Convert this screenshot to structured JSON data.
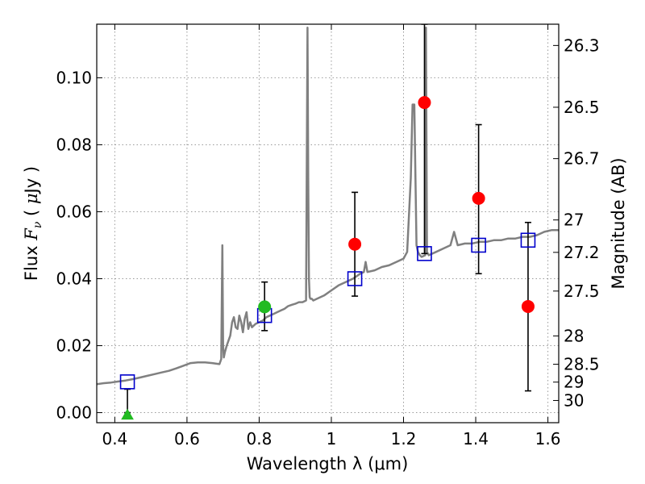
{
  "chart_data": {
    "type": "scatter",
    "title": "",
    "xlabel": "Wavelength  λ (μm)",
    "ylabel": "Flux  F_ν  ( μJy )",
    "ylabel_right": "Magnitude (AB)",
    "xlim": [
      0.35,
      1.63
    ],
    "ylim": [
      -0.003,
      0.116
    ],
    "grid": true,
    "x_ticks": [
      0.4,
      0.6,
      0.8,
      1.0,
      1.2,
      1.4,
      1.6
    ],
    "x_tick_labels": [
      "0.4",
      "0.6",
      "0.8",
      "1",
      "1.2",
      "1.4",
      "1.6"
    ],
    "y_ticks": [
      0.0,
      0.02,
      0.04,
      0.06,
      0.08,
      0.1
    ],
    "y_tick_labels": [
      "0.00",
      "0.02",
      "0.04",
      "0.06",
      "0.08",
      "0.10"
    ],
    "mag_ticks": [
      26.3,
      26.5,
      26.7,
      27,
      27.2,
      27.5,
      28,
      28.5,
      29,
      30
    ],
    "mag_tick_labels": [
      "26.3",
      "26.5",
      "26.7",
      "27",
      "27.2",
      "27.5",
      "28",
      "28.5",
      "29",
      "30"
    ],
    "colors": {
      "spectrum": "#808080",
      "model": "#0000cc",
      "measured": "#ff0000",
      "highlight": "#22bb22",
      "errorbar": "#000000",
      "grid": "#9a9a9a"
    },
    "series": [
      {
        "marker": "line",
        "x": [
          0.35,
          0.37,
          0.39,
          0.41,
          0.43,
          0.45,
          0.47,
          0.49,
          0.51,
          0.53,
          0.55,
          0.57,
          0.59,
          0.61,
          0.63,
          0.65,
          0.67,
          0.69,
          0.695,
          0.698,
          0.7,
          0.702,
          0.705,
          0.71,
          0.72,
          0.725,
          0.73,
          0.735,
          0.74,
          0.745,
          0.75,
          0.755,
          0.76,
          0.765,
          0.77,
          0.775,
          0.78,
          0.79,
          0.8,
          0.81,
          0.82,
          0.83,
          0.84,
          0.85,
          0.86,
          0.87,
          0.88,
          0.89,
          0.9,
          0.91,
          0.92,
          0.93,
          0.934,
          0.936,
          0.938,
          0.94,
          0.942,
          0.946,
          0.95,
          0.96,
          0.98,
          1.0,
          1.02,
          1.04,
          1.06,
          1.08,
          1.09,
          1.095,
          1.1,
          1.12,
          1.14,
          1.16,
          1.18,
          1.2,
          1.21,
          1.22,
          1.225,
          1.23,
          1.233,
          1.236,
          1.24,
          1.245,
          1.25,
          1.26,
          1.262,
          1.265,
          1.27,
          1.29,
          1.31,
          1.33,
          1.34,
          1.35,
          1.37,
          1.39,
          1.41,
          1.43,
          1.45,
          1.47,
          1.49,
          1.51,
          1.53,
          1.55,
          1.57,
          1.59,
          1.61,
          1.63
        ],
        "y": [
          0.0085,
          0.0088,
          0.009,
          0.0093,
          0.0096,
          0.01,
          0.0105,
          0.011,
          0.0115,
          0.012,
          0.0125,
          0.0132,
          0.014,
          0.0148,
          0.015,
          0.015,
          0.0148,
          0.0145,
          0.016,
          0.05,
          0.02,
          0.0165,
          0.018,
          0.02,
          0.023,
          0.027,
          0.0285,
          0.0255,
          0.025,
          0.029,
          0.027,
          0.024,
          0.028,
          0.03,
          0.025,
          0.027,
          0.0255,
          0.0265,
          0.027,
          0.0275,
          0.0285,
          0.029,
          0.0295,
          0.03,
          0.0305,
          0.031,
          0.0318,
          0.0322,
          0.0325,
          0.033,
          0.033,
          0.0335,
          0.115,
          0.07,
          0.04,
          0.0345,
          0.034,
          0.034,
          0.0335,
          0.034,
          0.035,
          0.0365,
          0.038,
          0.039,
          0.04,
          0.0415,
          0.042,
          0.045,
          0.042,
          0.0425,
          0.0435,
          0.044,
          0.045,
          0.046,
          0.048,
          0.07,
          0.092,
          0.092,
          0.07,
          0.05,
          0.048,
          0.047,
          0.0465,
          0.047,
          0.115,
          0.048,
          0.047,
          0.048,
          0.049,
          0.05,
          0.054,
          0.05,
          0.0505,
          0.0505,
          0.051,
          0.051,
          0.0515,
          0.0515,
          0.052,
          0.052,
          0.0525,
          0.0525,
          0.053,
          0.054,
          0.0545,
          0.0545
        ]
      },
      {
        "marker": "square",
        "x": [
          0.435,
          0.815,
          1.065,
          1.258,
          1.408,
          1.545
        ],
        "y": [
          0.0092,
          0.029,
          0.04,
          0.0475,
          0.05,
          0.0515
        ]
      },
      {
        "marker": "circle",
        "x": [
          1.065,
          1.258,
          1.408,
          1.545
        ],
        "y": [
          0.0503,
          0.0926,
          0.064,
          0.0317
        ],
        "err_low": [
          0.0348,
          0.0475,
          0.0415,
          0.0065
        ],
        "err_high": [
          0.0658,
          0.116,
          0.086,
          0.0568
        ]
      },
      {
        "marker": "circle",
        "x": [
          0.815
        ],
        "y": [
          0.0316
        ],
        "err_low": [
          0.0245
        ],
        "err_high": [
          0.039
        ]
      },
      {
        "marker": "triangle-up",
        "x": [
          0.435
        ],
        "y": [
          -0.0005
        ],
        "err_low": [
          0.0
        ],
        "err_high": [
          0.007
        ]
      }
    ]
  }
}
